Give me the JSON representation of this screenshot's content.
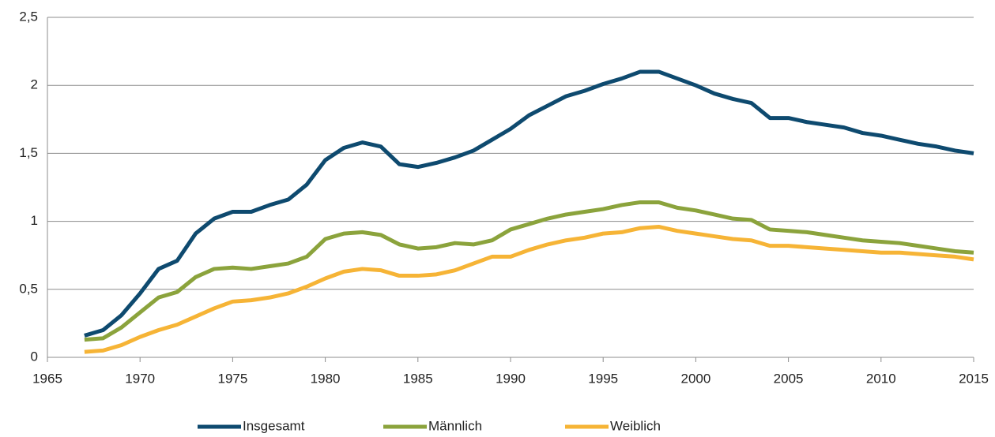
{
  "chart_data": {
    "type": "line",
    "x": [
      1967,
      1968,
      1969,
      1970,
      1971,
      1972,
      1973,
      1974,
      1975,
      1976,
      1977,
      1978,
      1979,
      1980,
      1981,
      1982,
      1983,
      1984,
      1985,
      1986,
      1987,
      1988,
      1989,
      1990,
      1991,
      1992,
      1993,
      1994,
      1995,
      1996,
      1997,
      1998,
      1999,
      2000,
      2001,
      2002,
      2003,
      2004,
      2005,
      2006,
      2007,
      2008,
      2009,
      2010,
      2011,
      2012,
      2013,
      2014,
      2015
    ],
    "series": [
      {
        "name": "Insgesamt",
        "color": "#0e4a6f",
        "values": [
          0.16,
          0.2,
          0.31,
          0.47,
          0.65,
          0.71,
          0.91,
          1.02,
          1.07,
          1.07,
          1.12,
          1.16,
          1.27,
          1.45,
          1.54,
          1.58,
          1.55,
          1.42,
          1.4,
          1.43,
          1.47,
          1.52,
          1.6,
          1.68,
          1.78,
          1.85,
          1.92,
          1.96,
          2.01,
          2.05,
          2.1,
          2.1,
          2.05,
          2.0,
          1.94,
          1.9,
          1.87,
          1.76,
          1.76,
          1.73,
          1.71,
          1.69,
          1.65,
          1.63,
          1.6,
          1.57,
          1.55,
          1.52,
          1.5
        ]
      },
      {
        "name": "Männlich",
        "color": "#8ba33c",
        "values": [
          0.13,
          0.14,
          0.22,
          0.33,
          0.44,
          0.48,
          0.59,
          0.65,
          0.66,
          0.65,
          0.67,
          0.69,
          0.74,
          0.87,
          0.91,
          0.92,
          0.9,
          0.83,
          0.8,
          0.81,
          0.84,
          0.83,
          0.86,
          0.94,
          0.98,
          1.02,
          1.05,
          1.07,
          1.09,
          1.12,
          1.14,
          1.14,
          1.1,
          1.08,
          1.05,
          1.02,
          1.01,
          0.94,
          0.93,
          0.92,
          0.9,
          0.88,
          0.86,
          0.85,
          0.84,
          0.82,
          0.8,
          0.78,
          0.77
        ]
      },
      {
        "name": "Weiblich",
        "color": "#f6b436",
        "values": [
          0.04,
          0.05,
          0.09,
          0.15,
          0.2,
          0.24,
          0.3,
          0.36,
          0.41,
          0.42,
          0.44,
          0.47,
          0.52,
          0.58,
          0.63,
          0.65,
          0.64,
          0.6,
          0.6,
          0.61,
          0.64,
          0.69,
          0.74,
          0.74,
          0.79,
          0.83,
          0.86,
          0.88,
          0.91,
          0.92,
          0.95,
          0.96,
          0.93,
          0.91,
          0.89,
          0.87,
          0.86,
          0.82,
          0.82,
          0.81,
          0.8,
          0.79,
          0.78,
          0.77,
          0.77,
          0.76,
          0.75,
          0.74,
          0.72
        ]
      }
    ],
    "xlim": [
      1965,
      2015
    ],
    "xticks": [
      1965,
      1970,
      1975,
      1980,
      1985,
      1990,
      1995,
      2000,
      2005,
      2010,
      2015
    ],
    "ylim": [
      0,
      2.5
    ],
    "yticks": [
      0,
      {
        "value": 0.5,
        "label": "0,5"
      },
      1,
      {
        "value": 1.5,
        "label": "1,5"
      },
      2,
      {
        "value": 2.5,
        "label": "2,5"
      }
    ],
    "grid": true,
    "legend": "bottom"
  }
}
